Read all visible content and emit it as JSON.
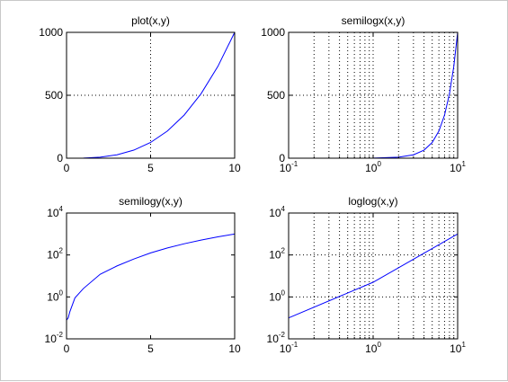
{
  "chart_data": [
    {
      "type": "line",
      "title": "plot(x,y)",
      "xscale": "linear",
      "yscale": "linear",
      "xlim": [
        0,
        10
      ],
      "ylim": [
        0,
        1000
      ],
      "xticks": [
        {
          "value": 0,
          "label": "0"
        },
        {
          "value": 5,
          "label": "5"
        },
        {
          "value": 10,
          "label": "10"
        }
      ],
      "yticks": [
        {
          "value": 0,
          "label": "0"
        },
        {
          "value": 500,
          "label": "500"
        },
        {
          "value": 1000,
          "label": "1000"
        }
      ],
      "grid": "major",
      "series": [
        {
          "color": "#0000ff",
          "x": [
            0,
            1,
            2,
            3,
            4,
            5,
            6,
            7,
            8,
            9,
            10
          ],
          "y": [
            0,
            1,
            8,
            27,
            64,
            125,
            216,
            343,
            512,
            729,
            1000
          ]
        }
      ]
    },
    {
      "type": "line",
      "title": "semilogx(x,y)",
      "xscale": "log",
      "yscale": "linear",
      "xlim": [
        0.1,
        10
      ],
      "ylim": [
        0,
        1000
      ],
      "xticks": [
        {
          "value": 0.1,
          "base": "10",
          "exp": "-1"
        },
        {
          "value": 1,
          "base": "10",
          "exp": "0"
        },
        {
          "value": 10,
          "base": "10",
          "exp": "1"
        }
      ],
      "yticks": [
        {
          "value": 0,
          "label": "0"
        },
        {
          "value": 500,
          "label": "500"
        },
        {
          "value": 1000,
          "label": "1000"
        }
      ],
      "grid": "major+minor-x",
      "series": [
        {
          "color": "#0000ff",
          "x": [
            0.1,
            0.2,
            0.5,
            1,
            2,
            3,
            4,
            5,
            6,
            7,
            8,
            9,
            10
          ],
          "y": [
            0.001,
            0.008,
            0.125,
            1,
            8,
            27,
            64,
            125,
            216,
            343,
            512,
            729,
            1000
          ]
        }
      ]
    },
    {
      "type": "line",
      "title": "semilogy(x,y)",
      "xscale": "linear",
      "yscale": "log",
      "xlim": [
        0,
        10
      ],
      "ylim": [
        0.01,
        10000
      ],
      "xticks": [
        {
          "value": 0,
          "label": "0"
        },
        {
          "value": 5,
          "label": "5"
        },
        {
          "value": 10,
          "label": "10"
        }
      ],
      "yticks": [
        {
          "value": 0.01,
          "base": "10",
          "exp": "-2"
        },
        {
          "value": 1,
          "base": "10",
          "exp": "0"
        },
        {
          "value": 100,
          "base": "10",
          "exp": "2"
        },
        {
          "value": 10000,
          "base": "10",
          "exp": "4"
        }
      ],
      "grid": "none",
      "series": [
        {
          "color": "#0000ff",
          "x": [
            0.01,
            0.1,
            0.2,
            0.5,
            1,
            2,
            3,
            4,
            5,
            6,
            7,
            8,
            9,
            10
          ],
          "y": [
            0.08,
            0.1,
            0.2,
            0.9,
            2.5,
            12,
            30,
            64,
            125,
            216,
            343,
            512,
            729,
            1000
          ]
        }
      ]
    },
    {
      "type": "line",
      "title": "loglog(x,y)",
      "xscale": "log",
      "yscale": "log",
      "xlim": [
        0.1,
        10
      ],
      "ylim": [
        0.01,
        10000
      ],
      "xticks": [
        {
          "value": 0.1,
          "base": "10",
          "exp": "-1"
        },
        {
          "value": 1,
          "base": "10",
          "exp": "0"
        },
        {
          "value": 10,
          "base": "10",
          "exp": "1"
        }
      ],
      "yticks": [
        {
          "value": 0.01,
          "base": "10",
          "exp": "-2"
        },
        {
          "value": 1,
          "base": "10",
          "exp": "0"
        },
        {
          "value": 100,
          "base": "10",
          "exp": "2"
        },
        {
          "value": 10000,
          "base": "10",
          "exp": "4"
        }
      ],
      "grid": "major+minor-x",
      "series": [
        {
          "color": "#0000ff",
          "x": [
            0.1,
            1,
            10
          ],
          "y": [
            0.1,
            5,
            1000
          ]
        }
      ]
    }
  ]
}
